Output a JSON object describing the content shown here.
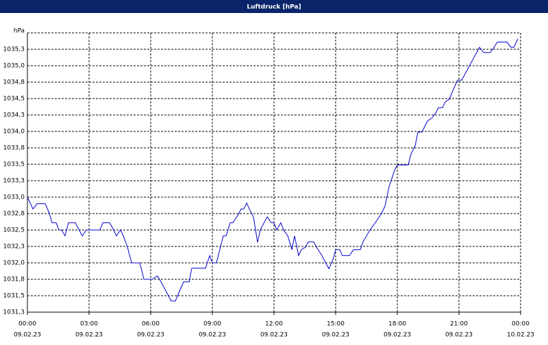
{
  "chart_data": {
    "type": "line",
    "title": "Luftdruck [hPa]",
    "y_label": "hPa",
    "xlim": [
      0,
      24
    ],
    "ylim": [
      1031.25,
      1035.5
    ],
    "xticks": [
      {
        "value": 0,
        "label": "00:00",
        "date": "09.02.23"
      },
      {
        "value": 3,
        "label": "03:00",
        "date": "09.02.23"
      },
      {
        "value": 6,
        "label": "06:00",
        "date": "09.02.23"
      },
      {
        "value": 9,
        "label": "09:00",
        "date": "09.02.23"
      },
      {
        "value": 12,
        "label": "12:00",
        "date": "09.02.23"
      },
      {
        "value": 15,
        "label": "15:00",
        "date": "09.02.23"
      },
      {
        "value": 18,
        "label": "18:00",
        "date": "09.02.23"
      },
      {
        "value": 21,
        "label": "21:00",
        "date": "09.02.23"
      },
      {
        "value": 24,
        "label": "00:00",
        "date": "10.02.23"
      }
    ],
    "yticks": [
      {
        "value": 1031.25,
        "label": "1031,3"
      },
      {
        "value": 1031.5,
        "label": "1031,5"
      },
      {
        "value": 1031.75,
        "label": "1031,8"
      },
      {
        "value": 1032,
        "label": "1032,0"
      },
      {
        "value": 1032.25,
        "label": "1032,3"
      },
      {
        "value": 1032.5,
        "label": "1032,5"
      },
      {
        "value": 1032.75,
        "label": "1032,8"
      },
      {
        "value": 1033,
        "label": "1033,0"
      },
      {
        "value": 1033.25,
        "label": "1033,3"
      },
      {
        "value": 1033.5,
        "label": "1033,5"
      },
      {
        "value": 1033.75,
        "label": "1033,8"
      },
      {
        "value": 1034,
        "label": "1034,0"
      },
      {
        "value": 1034.25,
        "label": "1034,3"
      },
      {
        "value": 1034.5,
        "label": "1034,5"
      },
      {
        "value": 1034.75,
        "label": "1034,8"
      },
      {
        "value": 1035,
        "label": "1035,0"
      },
      {
        "value": 1035.25,
        "label": "1035,3"
      }
    ],
    "grid": true,
    "color": "#0000cc",
    "x": [
      0,
      0.27,
      0.47,
      0.87,
      1.07,
      1.2,
      1.4,
      1.53,
      1.67,
      1.83,
      2.0,
      2.33,
      2.67,
      2.87,
      3.53,
      3.67,
      4.0,
      4.2,
      4.33,
      4.53,
      4.67,
      4.87,
      5.07,
      5.47,
      5.67,
      6.07,
      6.33,
      6.5,
      7.0,
      7.2,
      7.47,
      7.6,
      7.87,
      8.0,
      8.67,
      8.87,
      9.0,
      9.2,
      9.53,
      9.67,
      9.87,
      10.0,
      10.27,
      10.4,
      10.53,
      10.67,
      10.8,
      11.0,
      11.2,
      11.33,
      11.67,
      11.87,
      12.0,
      12.13,
      12.33,
      12.47,
      12.67,
      12.87,
      13.0,
      13.2,
      13.33,
      13.53,
      13.67,
      13.93,
      14.07,
      14.33,
      14.67,
      14.87,
      15.0,
      15.2,
      15.33,
      15.67,
      15.87,
      16.2,
      16.33,
      16.67,
      16.93,
      17.2,
      17.4,
      17.6,
      17.87,
      18.0,
      18.53,
      18.67,
      18.87,
      19.0,
      19.2,
      19.47,
      19.67,
      19.87,
      20.0,
      20.2,
      20.33,
      20.53,
      20.73,
      20.93,
      21.13,
      22.0,
      22.2,
      22.53,
      22.87,
      23.33,
      23.53,
      23.67,
      23.87
    ],
    "values": [
      1033.0,
      1032.82,
      1032.9,
      1032.9,
      1032.75,
      1032.61,
      1032.61,
      1032.5,
      1032.5,
      1032.41,
      1032.61,
      1032.61,
      1032.41,
      1032.5,
      1032.5,
      1032.61,
      1032.61,
      1032.5,
      1032.41,
      1032.5,
      1032.41,
      1032.24,
      1032.0,
      1032.0,
      1031.75,
      1031.75,
      1031.8,
      1031.71,
      1031.42,
      1031.42,
      1031.62,
      1031.71,
      1031.71,
      1031.92,
      1031.92,
      1032.11,
      1032.0,
      1032.0,
      1032.41,
      1032.41,
      1032.61,
      1032.61,
      1032.74,
      1032.82,
      1032.82,
      1032.91,
      1032.82,
      1032.7,
      1032.31,
      1032.5,
      1032.7,
      1032.61,
      1032.61,
      1032.5,
      1032.61,
      1032.5,
      1032.41,
      1032.2,
      1032.41,
      1032.11,
      1032.2,
      1032.24,
      1032.32,
      1032.32,
      1032.24,
      1032.11,
      1031.91,
      1032.05,
      1032.2,
      1032.2,
      1032.11,
      1032.11,
      1032.2,
      1032.2,
      1032.32,
      1032.5,
      1032.61,
      1032.74,
      1032.86,
      1033.16,
      1033.41,
      1033.49,
      1033.49,
      1033.66,
      1033.78,
      1033.99,
      1033.99,
      1034.16,
      1034.2,
      1034.28,
      1034.36,
      1034.36,
      1034.45,
      1034.49,
      1034.64,
      1034.78,
      1034.78,
      1035.28,
      1035.2,
      1035.2,
      1035.36,
      1035.36,
      1035.28,
      1035.28,
      1035.41
    ]
  }
}
